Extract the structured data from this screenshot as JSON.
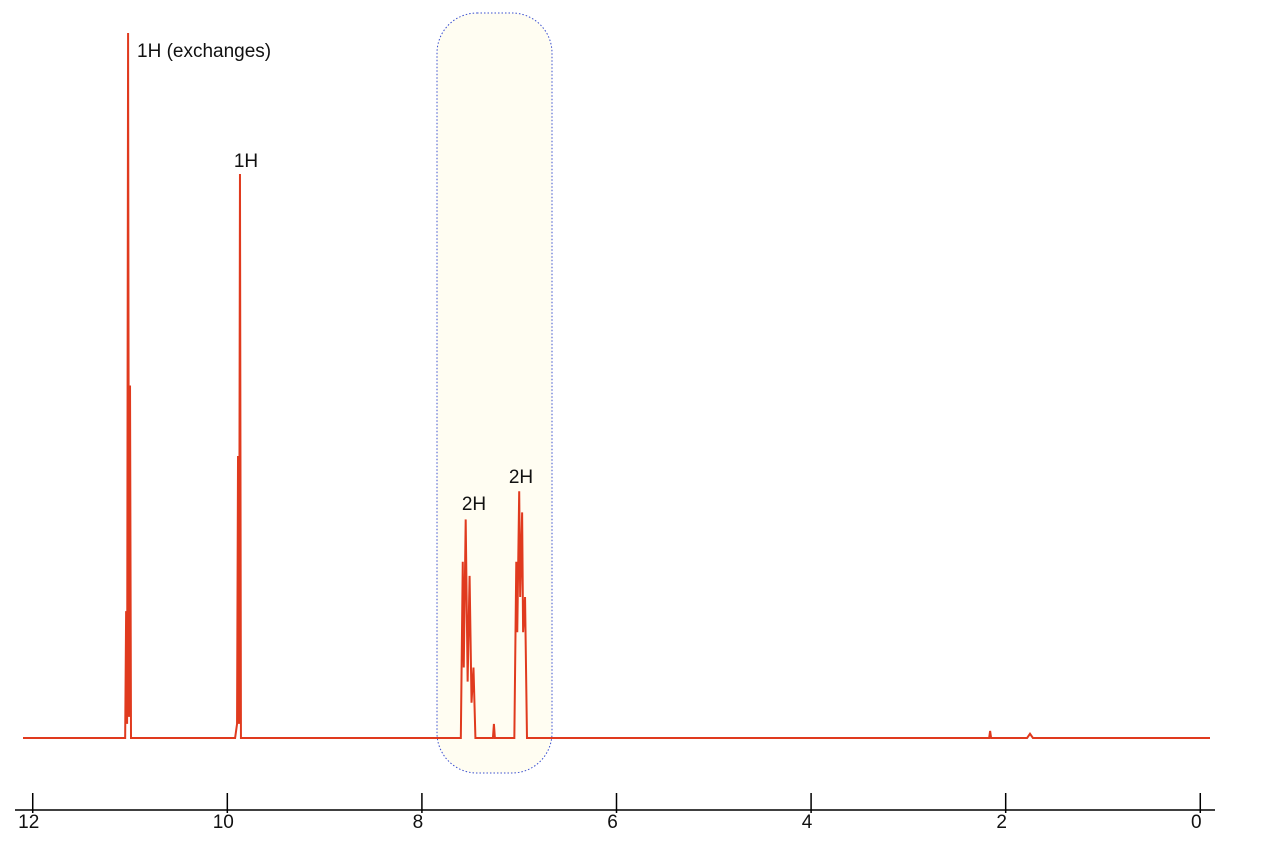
{
  "chart_data": {
    "type": "line",
    "annotations": [
      "1H (exchanges)",
      "1H",
      "2H",
      "2H"
    ],
    "x": [
      12.1,
      11.05,
      11.04,
      11.03,
      11.02,
      11.01,
      11.0,
      10.99,
      9.92,
      9.9,
      9.89,
      9.88,
      9.87,
      9.86,
      7.6,
      7.58,
      7.57,
      7.55,
      7.53,
      7.51,
      7.49,
      7.47,
      7.45,
      7.27,
      7.26,
      7.25,
      7.05,
      7.03,
      7.02,
      7.0,
      6.99,
      6.97,
      6.96,
      6.94,
      6.92,
      2.17,
      2.16,
      2.15,
      1.78,
      1.75,
      1.72,
      -0.1
    ],
    "series": [
      {
        "color": "#e03a1e",
        "values": [
          0,
          0,
          18,
          2,
          100,
          3,
          50,
          0,
          0,
          2,
          40,
          2,
          80,
          0,
          0,
          25,
          10,
          31,
          8,
          23,
          5,
          10,
          0,
          0,
          2,
          0,
          0,
          25,
          15,
          35,
          20,
          32,
          15,
          20,
          0,
          0,
          1,
          0,
          0,
          0.6,
          0,
          0
        ]
      }
    ],
    "xlim": [
      12.1,
      -0.1
    ],
    "xticks": [
      12,
      10,
      8,
      6,
      4,
      2,
      0
    ],
    "ylim": [
      0,
      100
    ]
  }
}
